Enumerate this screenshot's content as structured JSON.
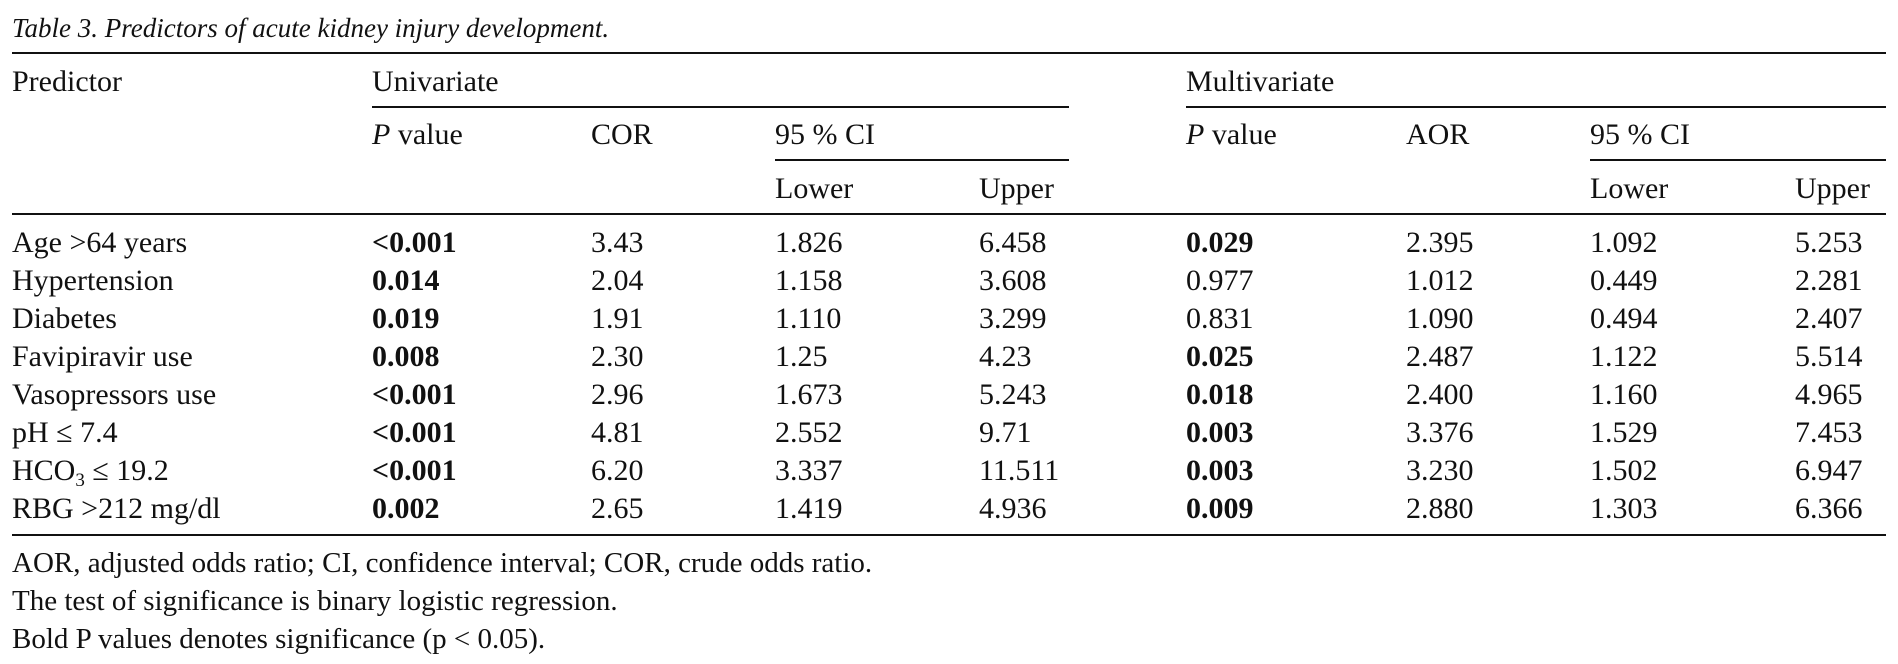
{
  "caption": "Table 3. Predictors of acute kidney injury development.",
  "headers": {
    "predictor": "Predictor",
    "univariate": "Univariate",
    "multivariate": "Multivariate",
    "p_italic": "P",
    "p_rest": " value",
    "cor": "COR",
    "aor": "AOR",
    "ci": "95 % CI",
    "lower": "Lower",
    "upper": "Upper"
  },
  "rows": [
    {
      "predictor": "Age >64 years",
      "u_p": "<0.001",
      "u_p_bold": true,
      "cor": "3.43",
      "u_lower": "1.826",
      "u_upper": "6.458",
      "m_p": "0.029",
      "m_p_bold": true,
      "aor": "2.395",
      "m_lower": "1.092",
      "m_upper": "5.253"
    },
    {
      "predictor": "Hypertension",
      "u_p": "0.014",
      "u_p_bold": true,
      "cor": "2.04",
      "u_lower": "1.158",
      "u_upper": "3.608",
      "m_p": "0.977",
      "m_p_bold": false,
      "aor": "1.012",
      "m_lower": "0.449",
      "m_upper": "2.281"
    },
    {
      "predictor": "Diabetes",
      "u_p": "0.019",
      "u_p_bold": true,
      "cor": "1.91",
      "u_lower": "1.110",
      "u_upper": "3.299",
      "m_p": "0.831",
      "m_p_bold": false,
      "aor": "1.090",
      "m_lower": "0.494",
      "m_upper": "2.407"
    },
    {
      "predictor": "Favipiravir use",
      "u_p": "0.008",
      "u_p_bold": true,
      "cor": "2.30",
      "u_lower": "1.25",
      "u_upper": "4.23",
      "m_p": "0.025",
      "m_p_bold": true,
      "aor": "2.487",
      "m_lower": "1.122",
      "m_upper": "5.514"
    },
    {
      "predictor": "Vasopressors use",
      "u_p": "<0.001",
      "u_p_bold": true,
      "cor": "2.96",
      "u_lower": "1.673",
      "u_upper": "5.243",
      "m_p": "0.018",
      "m_p_bold": true,
      "aor": "2.400",
      "m_lower": "1.160",
      "m_upper": "4.965"
    },
    {
      "predictor": "pH ≤ 7.4",
      "u_p": "<0.001",
      "u_p_bold": true,
      "cor": "4.81",
      "u_lower": "2.552",
      "u_upper": "9.71",
      "m_p": "0.003",
      "m_p_bold": true,
      "aor": "3.376",
      "m_lower": "1.529",
      "m_upper": "7.453"
    },
    {
      "predictor_main": "HCO",
      "predictor_sub": "3",
      "predictor_tail": " ≤ 19.2",
      "u_p": "<0.001",
      "u_p_bold": true,
      "cor": "6.20",
      "u_lower": "3.337",
      "u_upper": "11.511",
      "m_p": "0.003",
      "m_p_bold": true,
      "aor": "3.230",
      "m_lower": "1.502",
      "m_upper": "6.947"
    },
    {
      "predictor": "RBG >212 mg/dl",
      "u_p": "0.002",
      "u_p_bold": true,
      "cor": "2.65",
      "u_lower": "1.419",
      "u_upper": "4.936",
      "m_p": "0.009",
      "m_p_bold": true,
      "aor": "2.880",
      "m_lower": "1.303",
      "m_upper": "6.366"
    }
  ],
  "footnotes": [
    "AOR, adjusted odds ratio; CI, confidence interval; COR, crude odds ratio.",
    "The test of significance is binary logistic regression.",
    "Bold P values denotes significance (p < 0.05)."
  ]
}
